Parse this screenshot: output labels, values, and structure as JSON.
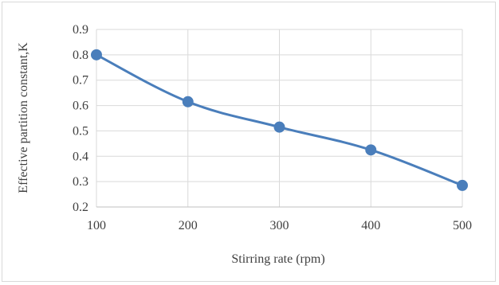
{
  "chart_data": {
    "type": "line",
    "title": "",
    "xlabel": "Stirring rate (rpm)",
    "ylabel": "Effective partition constant,K",
    "x": [
      100,
      200,
      300,
      400,
      500
    ],
    "xticks": [
      "100",
      "200",
      "300",
      "400",
      "500"
    ],
    "xlim": [
      100,
      500
    ],
    "ylim": [
      0.2,
      0.9
    ],
    "yticks": [
      "0.2",
      "0.3",
      "0.4",
      "0.5",
      "0.6",
      "0.7",
      "0.8",
      "0.9"
    ],
    "series": [
      {
        "values": [
          0.8,
          0.615,
          0.515,
          0.425,
          0.285
        ]
      }
    ],
    "grid": true,
    "legend": "none",
    "colors": {
      "series": "#4a7ebb",
      "grid": "#d9d9d9",
      "axis": "#bfbfbf",
      "text": "#404040"
    }
  }
}
